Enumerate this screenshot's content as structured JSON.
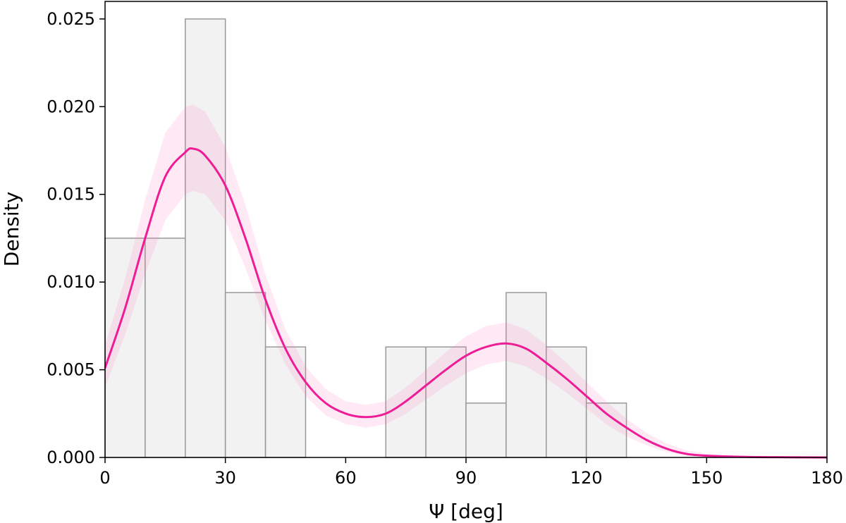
{
  "chart_data": {
    "type": "bar",
    "title": "",
    "xlabel": "Ψ [deg]",
    "ylabel": "Density",
    "xlim": [
      0,
      180
    ],
    "ylim": [
      0,
      0.026
    ],
    "grid": false,
    "legend": "none",
    "x_ticks": [
      0,
      30,
      60,
      90,
      120,
      150,
      180
    ],
    "x_tick_labels": [
      "0",
      "30",
      "60",
      "90",
      "120",
      "150",
      "180"
    ],
    "y_ticks": [
      0,
      0.005,
      0.01,
      0.015,
      0.02,
      0.025
    ],
    "y_tick_labels": [
      "0.000",
      "0.005",
      "0.010",
      "0.015",
      "0.020",
      "0.025"
    ],
    "histogram": {
      "bin_edges": [
        0,
        10,
        20,
        30,
        40,
        50,
        60,
        70,
        80,
        90,
        100,
        110,
        120,
        130
      ],
      "values": [
        0.0125,
        0.0125,
        0.025,
        0.0094,
        0.0063,
        0,
        0,
        0.0063,
        0.0063,
        0.0031,
        0.0094,
        0.0063,
        0.0031
      ],
      "fill_color": "#f2f2f2",
      "edge_color": "#999999"
    },
    "kde": {
      "color": "#ee1c96",
      "band_color": "#ff69b4",
      "x": [
        0,
        5,
        10,
        15,
        20,
        22,
        25,
        30,
        35,
        40,
        45,
        50,
        55,
        60,
        65,
        70,
        75,
        80,
        85,
        90,
        95,
        100,
        105,
        110,
        115,
        120,
        125,
        130,
        135,
        140,
        145,
        150,
        160,
        170,
        180
      ],
      "y": [
        0.0051,
        0.0085,
        0.0125,
        0.016,
        0.0174,
        0.0176,
        0.0172,
        0.0155,
        0.0125,
        0.009,
        0.0062,
        0.0043,
        0.0031,
        0.0025,
        0.0023,
        0.0025,
        0.0032,
        0.0041,
        0.005,
        0.0058,
        0.0063,
        0.0065,
        0.0062,
        0.0054,
        0.0045,
        0.0035,
        0.0025,
        0.0017,
        0.001,
        0.0005,
        0.0002,
        0.0001,
        3e-05,
        1e-05,
        0
      ],
      "lower": [
        0.004,
        0.007,
        0.0105,
        0.0135,
        0.015,
        0.0152,
        0.015,
        0.0135,
        0.0108,
        0.0078,
        0.0053,
        0.0035,
        0.0024,
        0.0019,
        0.0017,
        0.0019,
        0.0025,
        0.0033,
        0.0041,
        0.0048,
        0.0053,
        0.0055,
        0.0052,
        0.0045,
        0.0037,
        0.0028,
        0.0019,
        0.0012,
        0.0007,
        0.0003,
        0.0001,
        5e-05,
        1e-05,
        0,
        0
      ],
      "upper": [
        0.0064,
        0.0102,
        0.0147,
        0.0185,
        0.02,
        0.0201,
        0.0197,
        0.0177,
        0.0144,
        0.0104,
        0.0073,
        0.0052,
        0.0039,
        0.0032,
        0.003,
        0.0032,
        0.004,
        0.005,
        0.006,
        0.0069,
        0.0075,
        0.0077,
        0.0073,
        0.0064,
        0.0054,
        0.0043,
        0.0032,
        0.0022,
        0.0014,
        0.0008,
        0.0004,
        0.0002,
        6e-05,
        2e-05,
        0
      ]
    }
  }
}
